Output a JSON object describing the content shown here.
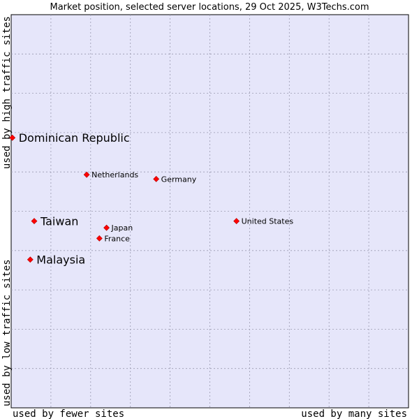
{
  "chart_data": {
    "type": "scatter",
    "title": "Market position, selected server locations, 29 Oct 2025, W3Techs.com",
    "xlabel_left": "used by fewer sites",
    "xlabel_right": "used by many sites",
    "ylabel_bottom": "used by low traffic sites",
    "ylabel_top": "used by high traffic sites",
    "xlim": [
      0,
      100
    ],
    "ylim": [
      0,
      100
    ],
    "grid": true,
    "colors": {
      "plot_background": "#e6e6fa",
      "grid": "#9a9ab0",
      "marker": "#ff0000"
    },
    "points": [
      {
        "label": "Dominican Republic",
        "x": 0.3,
        "y": 68.7,
        "emphasis": true
      },
      {
        "label": "Netherlands",
        "x": 19.0,
        "y": 59.3,
        "emphasis": false
      },
      {
        "label": "Germany",
        "x": 36.5,
        "y": 58.2,
        "emphasis": false
      },
      {
        "label": "Taiwan",
        "x": 5.8,
        "y": 47.5,
        "emphasis": true
      },
      {
        "label": "Japan",
        "x": 24.0,
        "y": 45.8,
        "emphasis": false
      },
      {
        "label": "United States",
        "x": 56.7,
        "y": 47.5,
        "emphasis": false
      },
      {
        "label": "France",
        "x": 22.2,
        "y": 43.1,
        "emphasis": false
      },
      {
        "label": "Malaysia",
        "x": 4.8,
        "y": 37.7,
        "emphasis": true
      }
    ]
  }
}
